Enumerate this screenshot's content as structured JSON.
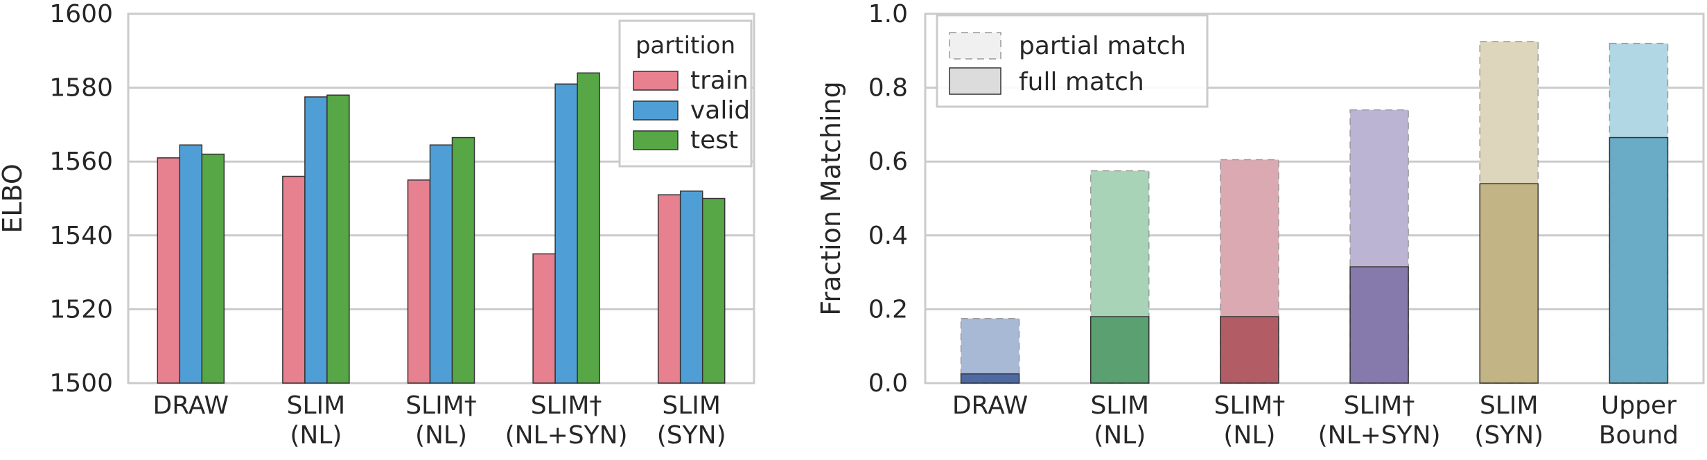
{
  "chart_data": [
    {
      "type": "bar",
      "ylabel": "ELBO",
      "ylim": [
        1500,
        1600
      ],
      "yticks": [
        "1500",
        "1520",
        "1540",
        "1560",
        "1580",
        "1600"
      ],
      "ytick_values": [
        1500,
        1520,
        1540,
        1560,
        1580,
        1600
      ],
      "categories": [
        [
          "DRAW"
        ],
        [
          "SLIM",
          "(NL)"
        ],
        [
          "SLIM†",
          "(NL)"
        ],
        [
          "SLIM†",
          "(NL+SYN)"
        ],
        [
          "SLIM",
          "(SYN)"
        ]
      ],
      "grid": true,
      "legend": {
        "title": "partition",
        "placement": "top-right"
      },
      "series": [
        {
          "name": "train",
          "color": "#e7808f",
          "values": [
            1561,
            1556,
            1555,
            1535,
            1551
          ]
        },
        {
          "name": "valid",
          "color": "#4f9fd6",
          "values": [
            1564.5,
            1577.5,
            1564.5,
            1581,
            1552
          ]
        },
        {
          "name": "test",
          "color": "#58a746",
          "values": [
            1562,
            1578,
            1566.5,
            1584,
            1550
          ]
        }
      ]
    },
    {
      "type": "bar",
      "ylabel": "Fraction Matching",
      "ylim": [
        0,
        1
      ],
      "yticks": [
        "0.0",
        "0.2",
        "0.4",
        "0.6",
        "0.8",
        "1.0"
      ],
      "ytick_values": [
        0,
        0.2,
        0.4,
        0.6,
        0.8,
        1.0
      ],
      "categories": [
        [
          "DRAW"
        ],
        [
          "SLIM",
          "(NL)"
        ],
        [
          "SLIM†",
          "(NL)"
        ],
        [
          "SLIM†",
          "(NL+SYN)"
        ],
        [
          "SLIM",
          "(SYN)"
        ],
        [
          "Upper",
          "Bound"
        ]
      ],
      "grid": true,
      "legend": {
        "placement": "top-left"
      },
      "series": [
        {
          "name": "partial match",
          "values": [
            0.175,
            0.575,
            0.605,
            0.74,
            0.925,
            0.92
          ]
        },
        {
          "name": "full match",
          "values": [
            0.025,
            0.18,
            0.18,
            0.315,
            0.54,
            0.665
          ]
        }
      ],
      "colors_full": [
        "#4d6aa3",
        "#5aa070",
        "#b25c66",
        "#8679ab",
        "#c2b484",
        "#6aabc5"
      ],
      "colors_partial": [
        "#a8b9d6",
        "#a9d3b6",
        "#dba9b1",
        "#bbb4d3",
        "#ddd6bc",
        "#b1d7e5"
      ]
    }
  ]
}
